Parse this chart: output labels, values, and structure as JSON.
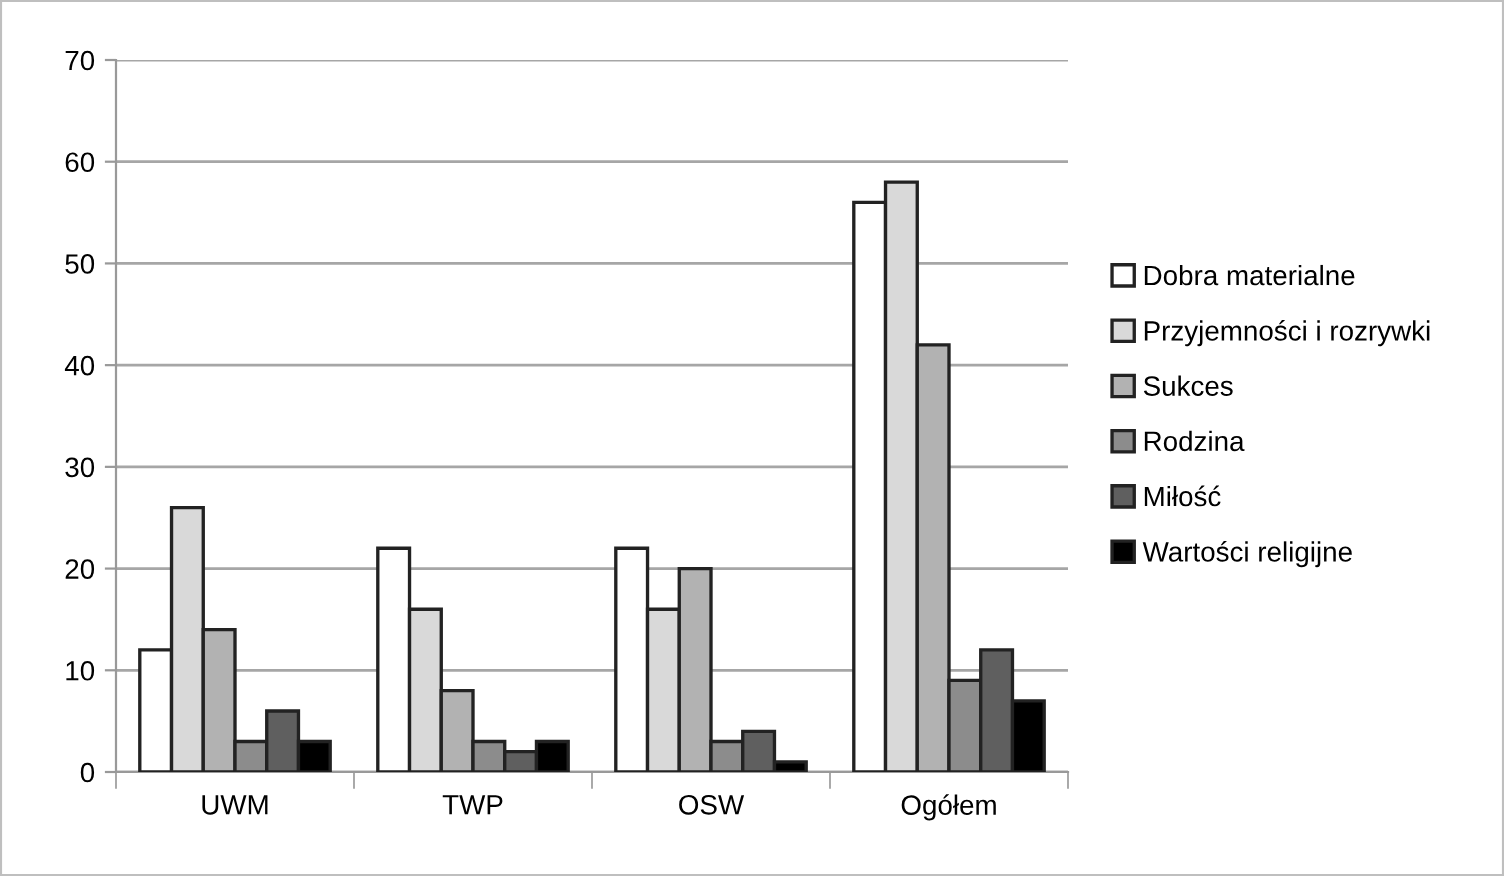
{
  "chart_data": {
    "type": "bar",
    "categories": [
      "UWM",
      "TWP",
      "OSW",
      "Ogółem"
    ],
    "series": [
      {
        "name": "Dobra materialne",
        "color": "#ffffff",
        "values": [
          12,
          22,
          22,
          56
        ]
      },
      {
        "name": "Przyjemności i rozrywki",
        "color": "#d9d9d9",
        "values": [
          26,
          16,
          16,
          58
        ]
      },
      {
        "name": "Sukces",
        "color": "#b2b2b2",
        "values": [
          14,
          8,
          20,
          42
        ]
      },
      {
        "name": "Rodzina",
        "color": "#8c8c8c",
        "values": [
          3,
          3,
          3,
          9
        ]
      },
      {
        "name": "Miłość",
        "color": "#5f5f5f",
        "values": [
          6,
          2,
          4,
          12
        ]
      },
      {
        "name": "Wartości religijne",
        "color": "#000000",
        "values": [
          3,
          3,
          1,
          7
        ]
      }
    ],
    "ylim": [
      0,
      70
    ],
    "yticks": [
      0,
      10,
      20,
      30,
      40,
      50,
      60,
      70
    ],
    "grid": "y",
    "legend": "right"
  }
}
